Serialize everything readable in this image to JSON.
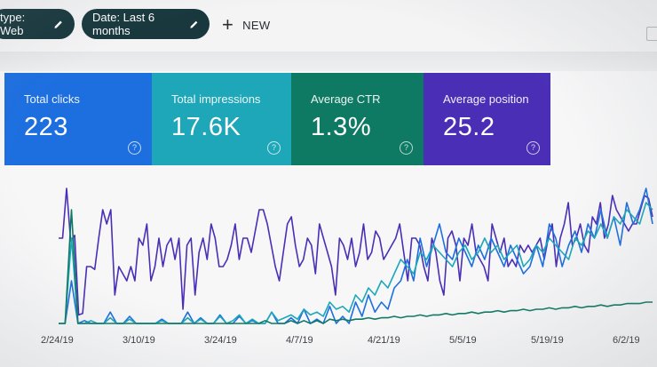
{
  "filters": {
    "type_chip": "type: Web",
    "date_chip": "Date: Last 6 months",
    "new_label": "NEW"
  },
  "cards": [
    {
      "key": "clicks",
      "label": "Total clicks",
      "value": "223",
      "color": "#1d6fe0"
    },
    {
      "key": "impressions",
      "label": "Total impressions",
      "value": "17.6K",
      "color": "#1da7b8"
    },
    {
      "key": "ctr",
      "label": "Average CTR",
      "value": "1.3%",
      "color": "#0f7a64"
    },
    {
      "key": "position",
      "label": "Average position",
      "value": "25.2",
      "color": "#4a2fb6"
    }
  ],
  "help_glyph": "?",
  "chart_data": {
    "type": "line",
    "x_ticks": [
      "2/24/19",
      "3/10/19",
      "3/24/19",
      "4/7/19",
      "4/21/19",
      "5/5/19",
      "5/19/19",
      "6/2/19"
    ],
    "series": [
      {
        "name": "Average position",
        "color": "#4a2fb6",
        "values": [
          60,
          60,
          95,
          58,
          62,
          6,
          7,
          40,
          40,
          38,
          60,
          80,
          70,
          80,
          20,
          40,
          35,
          30,
          40,
          30,
          60,
          55,
          70,
          30,
          40,
          60,
          40,
          55,
          60,
          45,
          60,
          10,
          55,
          60,
          20,
          50,
          60,
          45,
          70,
          60,
          40,
          40,
          45,
          55,
          70,
          45,
          60,
          60,
          50,
          65,
          80,
          80,
          70,
          55,
          40,
          30,
          50,
          70,
          75,
          55,
          40,
          45,
          60,
          55,
          35,
          70,
          60,
          50,
          40,
          20,
          60,
          55,
          45,
          60,
          40,
          50,
          70,
          45,
          50,
          65,
          60,
          45,
          50,
          55,
          60,
          70,
          50,
          30,
          60,
          60,
          55,
          40,
          30,
          60,
          50,
          30,
          20,
          60,
          65,
          55,
          30,
          60,
          55,
          70,
          50,
          45,
          40,
          30,
          70,
          60,
          50,
          60,
          40,
          45,
          40,
          55,
          50,
          55,
          50,
          55,
          60,
          45,
          60,
          70,
          40,
          60,
          70,
          85,
          55,
          60,
          70,
          55,
          50,
          75,
          70,
          85,
          60,
          70,
          90,
          80,
          75,
          70,
          65,
          70,
          70,
          80,
          90,
          88,
          75
        ]
      },
      {
        "name": "Total clicks",
        "color": "#1d6fe0",
        "values": [
          0,
          0,
          30,
          0,
          2,
          0,
          0,
          0,
          8,
          0,
          0,
          5,
          0,
          0,
          0,
          0,
          3,
          0,
          0,
          0,
          8,
          0,
          4,
          0,
          0,
          6,
          0,
          0,
          5,
          0,
          2,
          0,
          0,
          8,
          0,
          0,
          4,
          0,
          10,
          0,
          3,
          0,
          12,
          0,
          5,
          0,
          15,
          5,
          20,
          8,
          15,
          10,
          25,
          30,
          45,
          30,
          60,
          40,
          55,
          70,
          50,
          45,
          60,
          50,
          40,
          55,
          45,
          60,
          50,
          40,
          55,
          45,
          35,
          40,
          55,
          40,
          70,
          60,
          40,
          55,
          65,
          50,
          70,
          60,
          80,
          60,
          75,
          55,
          85,
          70,
          80,
          95,
          70
        ]
      },
      {
        "name": "Total impressions",
        "color": "#1da7b8",
        "values": [
          0,
          0,
          60,
          0,
          0,
          2,
          0,
          0,
          4,
          0,
          0,
          3,
          0,
          0,
          0,
          0,
          2,
          0,
          0,
          0,
          4,
          0,
          3,
          0,
          0,
          5,
          0,
          2,
          6,
          0,
          3,
          0,
          0,
          8,
          2,
          4,
          6,
          3,
          10,
          6,
          8,
          5,
          15,
          10,
          12,
          8,
          20,
          15,
          25,
          20,
          30,
          25,
          35,
          45,
          40,
          35,
          50,
          45,
          55,
          50,
          45,
          40,
          50,
          55,
          45,
          50,
          60,
          50,
          55,
          45,
          50,
          55,
          40,
          45,
          55,
          50,
          60,
          55,
          50,
          45,
          60,
          55,
          65,
          60,
          70,
          60,
          75,
          70,
          80,
          75,
          70,
          85,
          80
        ]
      },
      {
        "name": "Average CTR",
        "color": "#0f7a64",
        "values": [
          0,
          0,
          80,
          0,
          0,
          0,
          0,
          0,
          0,
          0,
          0,
          0,
          0,
          0,
          0,
          0,
          0,
          0,
          0,
          0,
          0,
          0,
          0,
          0,
          0,
          0,
          0,
          0,
          0,
          0,
          0,
          0,
          2,
          0,
          0,
          0,
          2,
          0,
          2,
          0,
          2,
          0,
          3,
          2,
          3,
          2,
          3,
          3,
          4,
          3,
          4,
          4,
          5,
          4,
          5,
          5,
          6,
          5,
          6,
          6,
          7,
          6,
          7,
          7,
          8,
          7,
          8,
          8,
          9,
          8,
          9,
          9,
          10,
          9,
          10,
          10,
          11,
          10,
          11,
          11,
          12,
          11,
          12,
          12,
          13,
          12,
          13,
          13,
          14,
          14,
          14,
          15,
          15
        ]
      }
    ],
    "ylim": [
      0,
      100
    ],
    "grid": false,
    "legend": "none"
  }
}
